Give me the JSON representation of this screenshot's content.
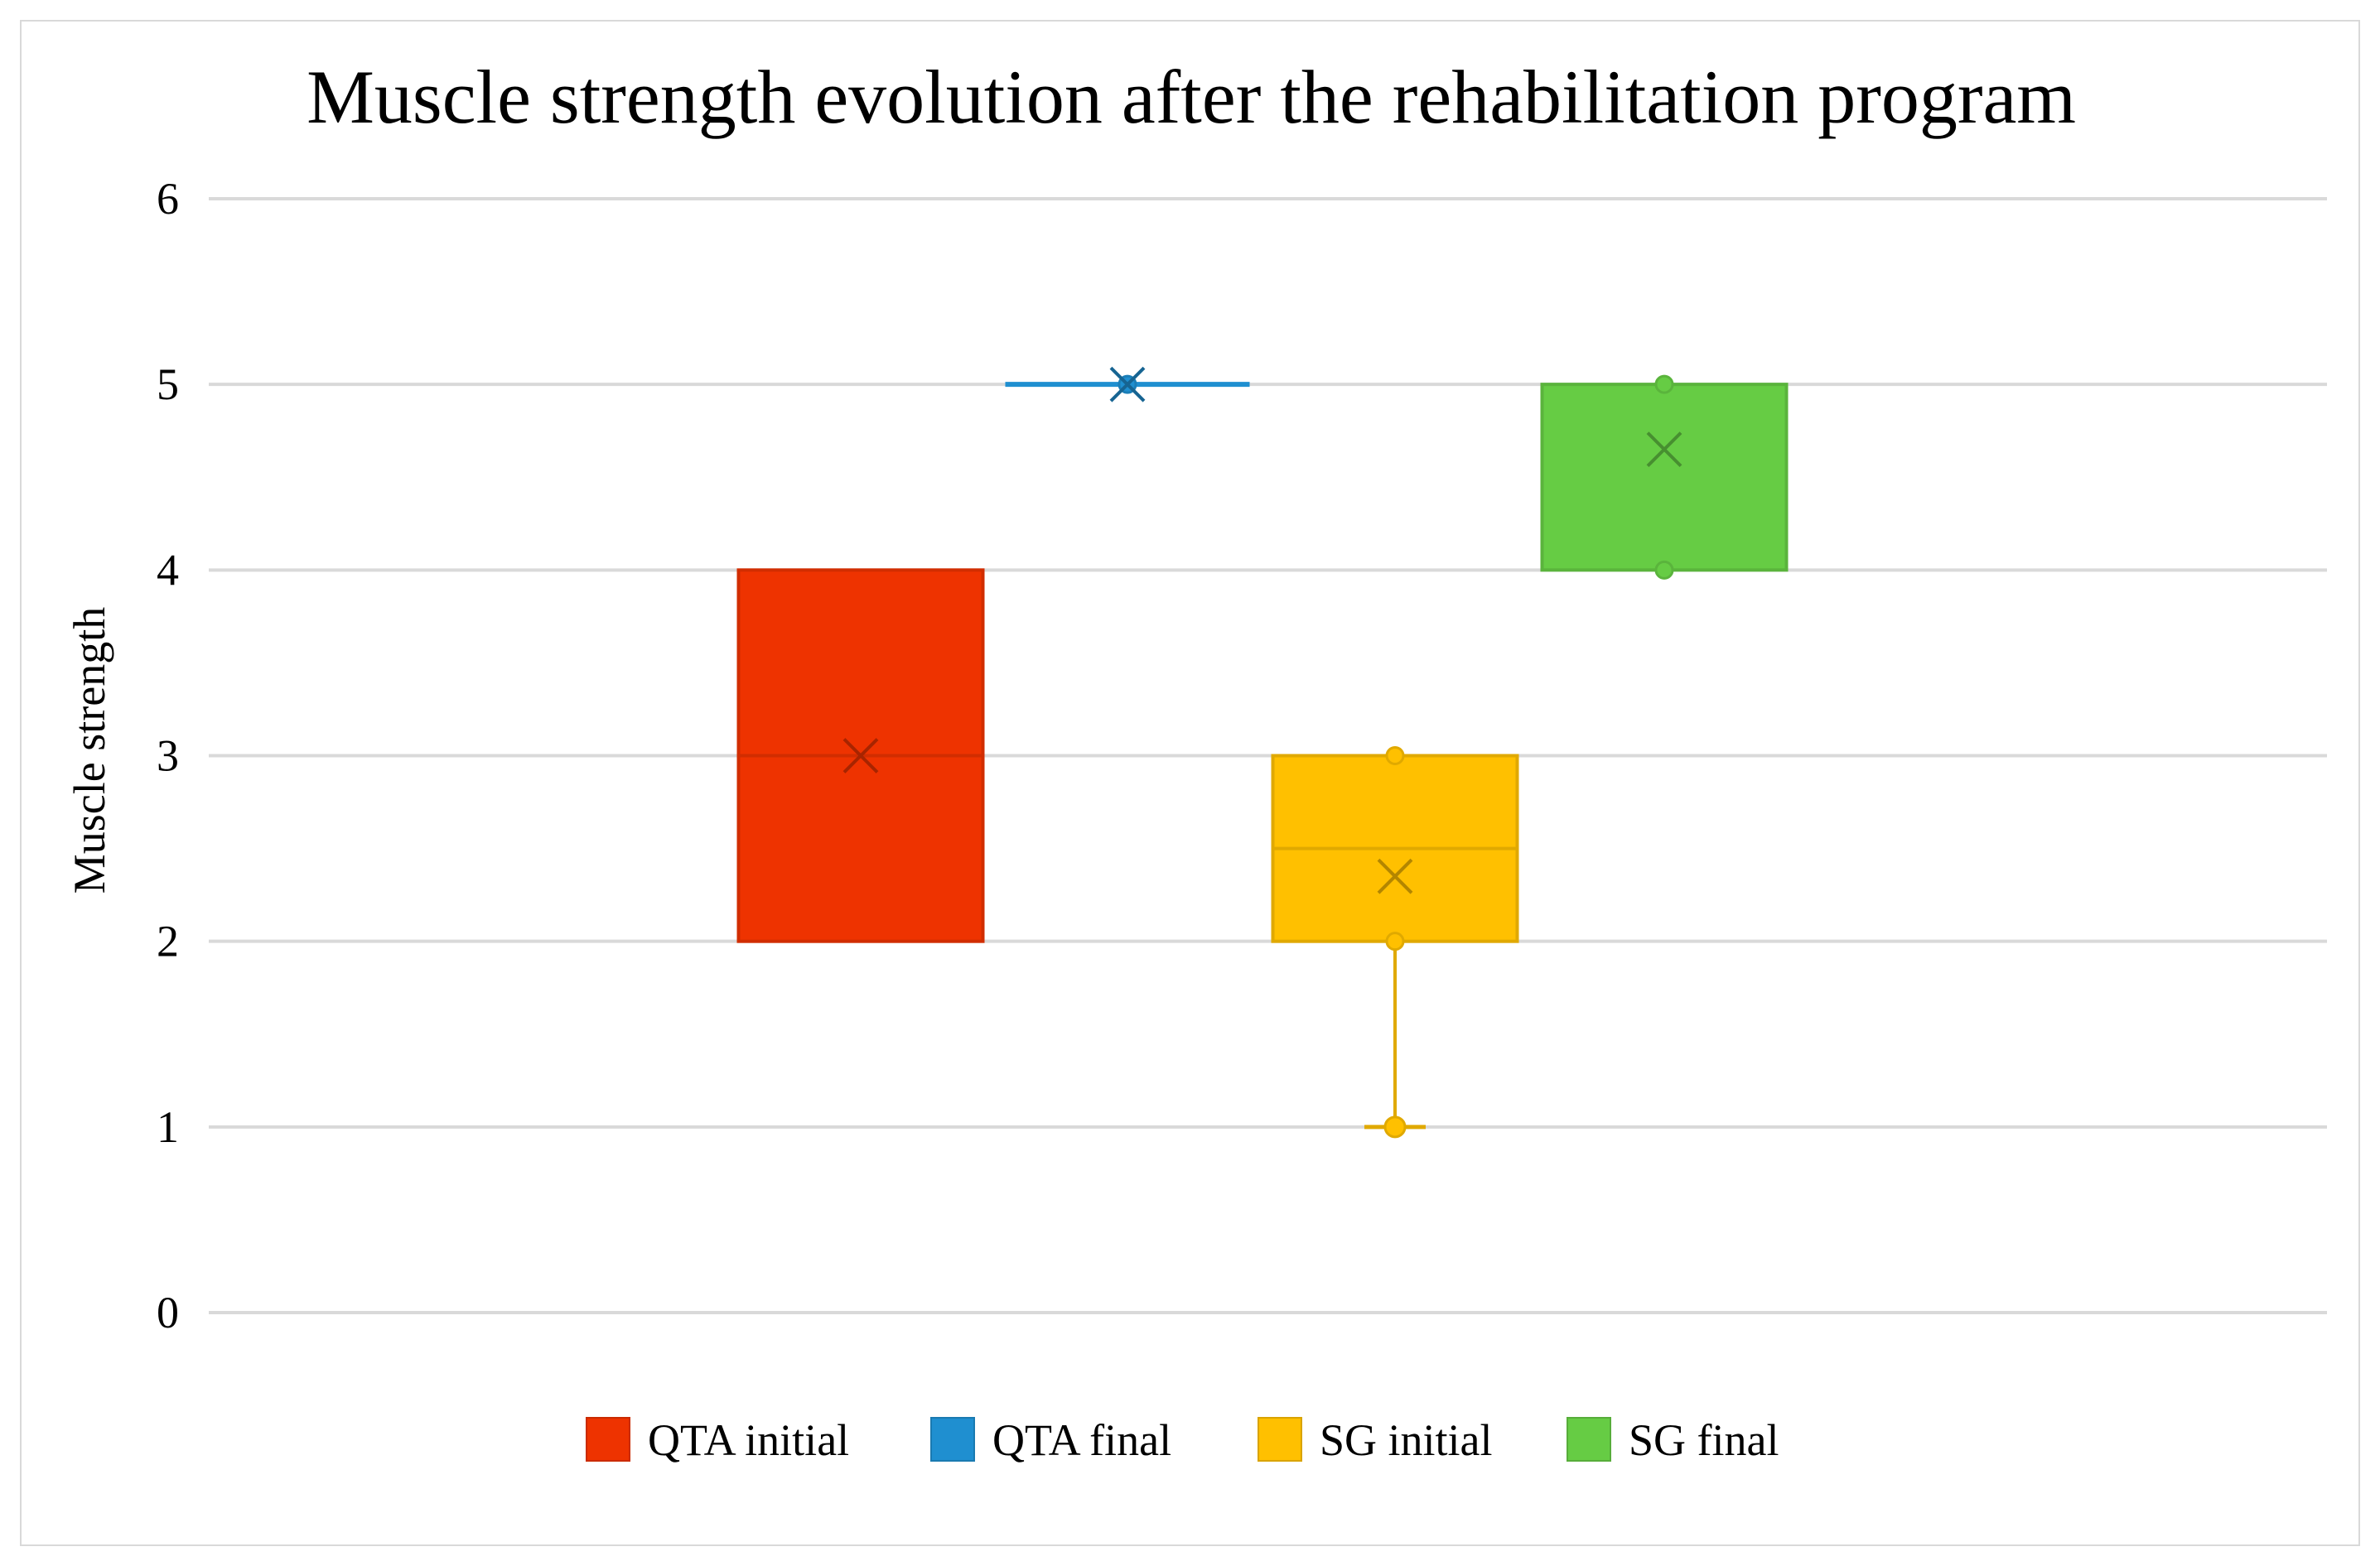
{
  "chart_data": {
    "type": "boxplot",
    "title": "Muscle strength evolution after the rehabilitation program",
    "xlabel": "",
    "ylabel": "Muscle strength",
    "ylim": [
      0,
      6
    ],
    "yticks": [
      0,
      1,
      2,
      3,
      4,
      5,
      6
    ],
    "ytick_labels": [
      "0",
      "1",
      "2",
      "3",
      "4",
      "5",
      "6"
    ],
    "grid": true,
    "legend_position": "bottom",
    "series": [
      {
        "name": "QTA initial",
        "color": "#ee3300",
        "min": 2,
        "q1": 2,
        "median": 3,
        "q3": 4,
        "max": 4,
        "mean": 3,
        "points": []
      },
      {
        "name": "QTA final",
        "color": "#1f8fd0",
        "min": 5,
        "q1": 5,
        "median": 5,
        "q3": 5,
        "max": 5,
        "mean": 5,
        "points": [
          5
        ]
      },
      {
        "name": "SG initial",
        "color": "#ffc000",
        "min": 1,
        "q1": 2,
        "median": 2.5,
        "q3": 3,
        "max": 3,
        "mean": 2.35,
        "points": [
          3,
          2,
          1
        ]
      },
      {
        "name": "SG final",
        "color": "#66cc44",
        "min": 4,
        "q1": 4,
        "median": 5,
        "q3": 5,
        "max": 5,
        "mean": 4.65,
        "points": [
          5,
          4
        ]
      }
    ]
  }
}
